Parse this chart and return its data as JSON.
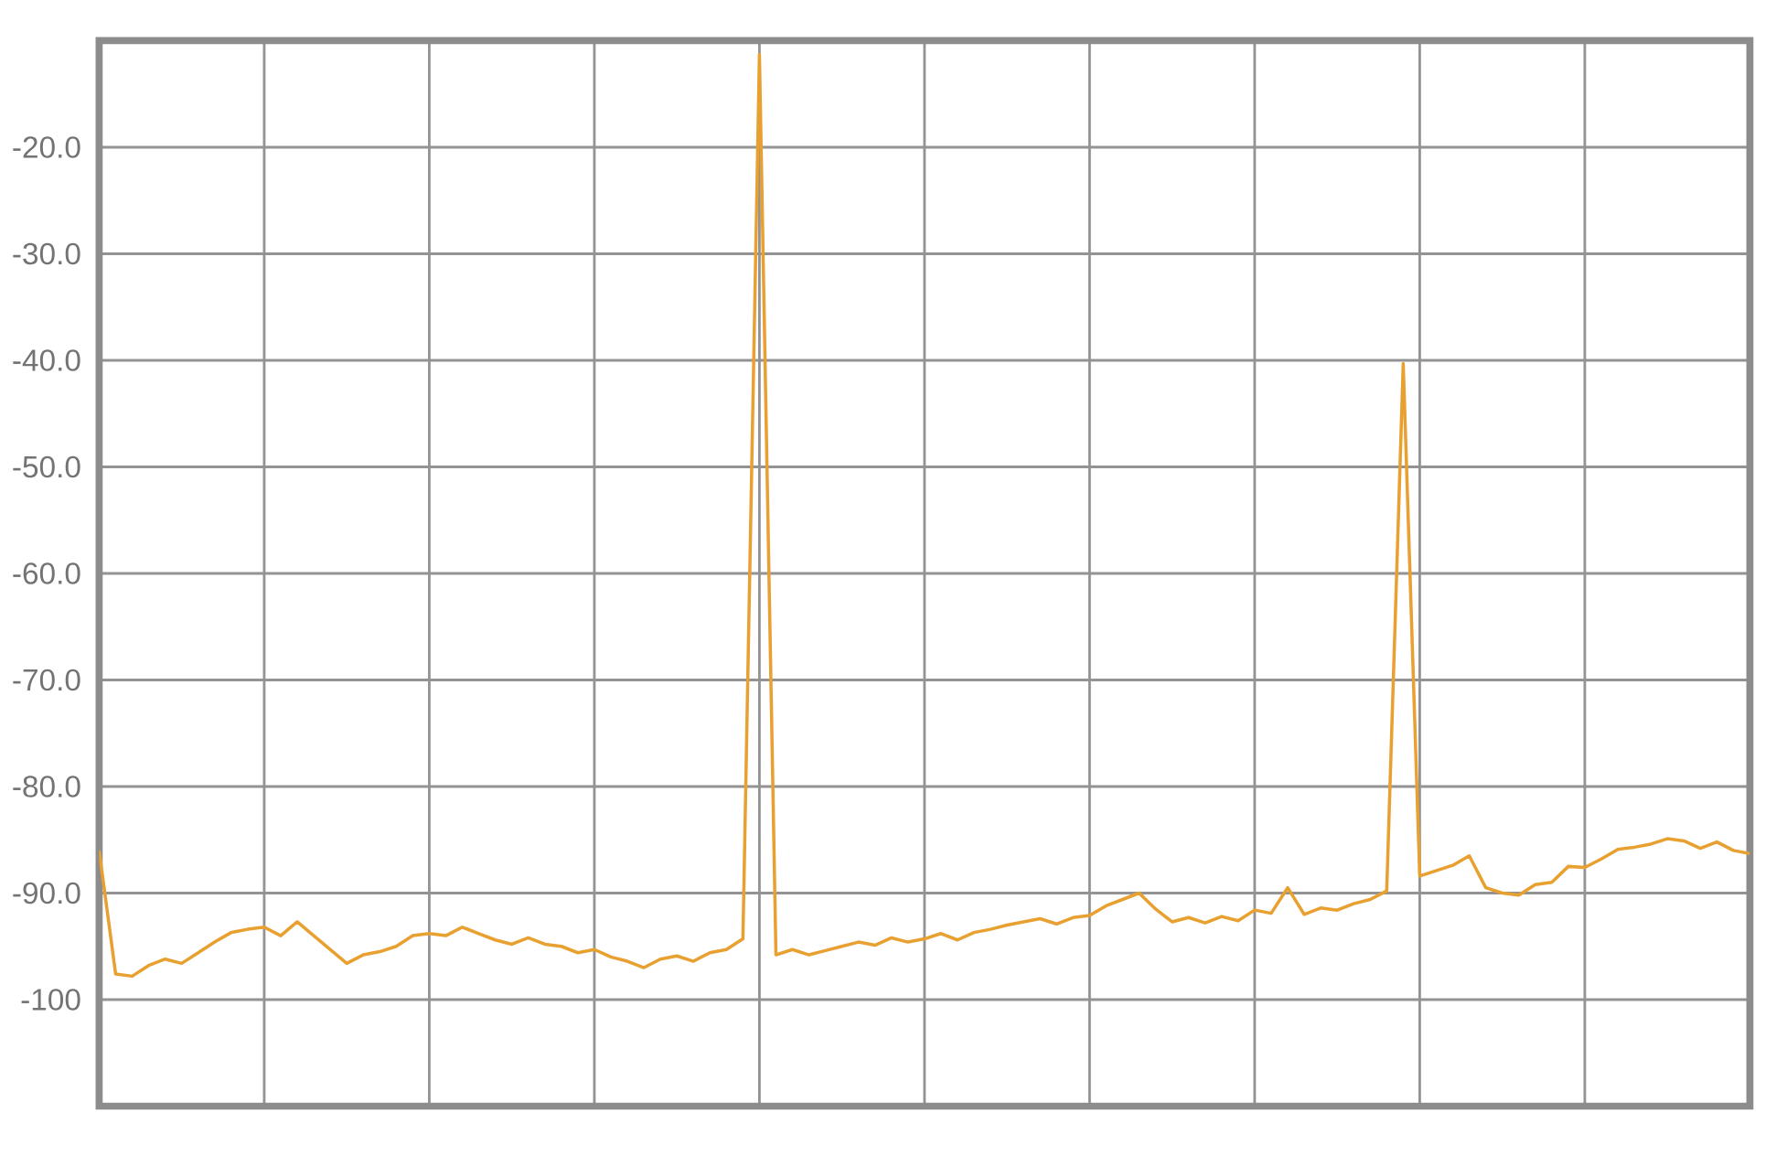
{
  "chart_data": {
    "type": "line",
    "color": "#e8a030",
    "categories": [
      null,
      null,
      null,
      null,
      null,
      null,
      null,
      null,
      null,
      null,
      null,
      null,
      null,
      null,
      null,
      null,
      null,
      null,
      null,
      null,
      null,
      null,
      null,
      null,
      null,
      null,
      null,
      null,
      null,
      null,
      null,
      null,
      null,
      null,
      null,
      null,
      null,
      null,
      null,
      null,
      null,
      null,
      null,
      null,
      null,
      null,
      null,
      null,
      null,
      null,
      null,
      null,
      null,
      null,
      null,
      null,
      null,
      null,
      null,
      null,
      null,
      null,
      null,
      null,
      null,
      null,
      null,
      null,
      null,
      null,
      null,
      null,
      null,
      null,
      null,
      null,
      null,
      null,
      null,
      null,
      null,
      null,
      null,
      null,
      null,
      null,
      null,
      null,
      null,
      null,
      null,
      null,
      null,
      null,
      null,
      null,
      null,
      null,
      null,
      null,
      null
    ],
    "values": [
      -86,
      -97.6,
      -97.8,
      -96.8,
      -96.2,
      -96.6,
      -95.6,
      -94.6,
      -93.7,
      -93.4,
      -93.2,
      -94.0,
      -92.7,
      -94.0,
      -95.3,
      -96.6,
      -95.8,
      -95.5,
      -95.0,
      -94.0,
      -93.8,
      -94.0,
      -93.2,
      -93.8,
      -94.4,
      -94.8,
      -94.2,
      -94.8,
      -95.0,
      -95.6,
      -95.3,
      -96.0,
      -96.4,
      -97.0,
      -96.2,
      -95.9,
      -96.4,
      -95.6,
      -95.3,
      -94.3,
      -11.3,
      -95.8,
      -95.3,
      -95.8,
      -95.4,
      -95.0,
      -94.6,
      -94.9,
      -94.2,
      -94.6,
      -94.3,
      -93.8,
      -94.4,
      -93.7,
      -93.4,
      -93.0,
      -92.7,
      -92.4,
      -92.9,
      -92.3,
      -92.1,
      -91.2,
      -90.6,
      -90.0,
      -91.5,
      -92.7,
      -92.3,
      -92.8,
      -92.2,
      -92.6,
      -91.6,
      -91.9,
      -89.5,
      -92.0,
      -91.4,
      -91.6,
      -91.0,
      -90.6,
      -89.8,
      -40.3,
      -88.4,
      -87.9,
      -87.4,
      -86.5,
      -89.5,
      -90.0,
      -90.2,
      -89.2,
      -89.0,
      -87.5,
      -87.6,
      -86.8,
      -85.9,
      -85.7,
      -85.4,
      -84.9,
      -85.1,
      -85.8,
      -85.2,
      -86.0,
      -86.3
    ],
    "ylim": [
      -110,
      -10
    ],
    "yticks": [
      {
        "value": -20,
        "label": "-20.0"
      },
      {
        "value": -30,
        "label": "-30.0"
      },
      {
        "value": -40,
        "label": "-40.0"
      },
      {
        "value": -50,
        "label": "-50.0"
      },
      {
        "value": -60,
        "label": "-60.0"
      },
      {
        "value": -70,
        "label": "-70.0"
      },
      {
        "value": -80,
        "label": "-80.0"
      },
      {
        "value": -90,
        "label": "-90.0"
      },
      {
        "value": -100,
        "label": "-100"
      }
    ],
    "grid": true,
    "tick_labels": "y",
    "marker": "none",
    "line_style": "solid"
  }
}
